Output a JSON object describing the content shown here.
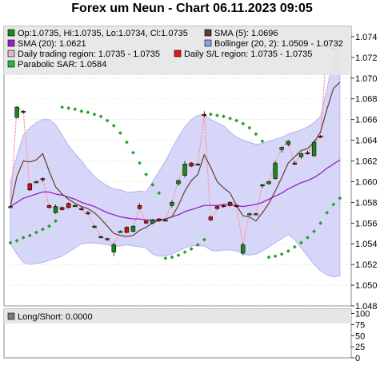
{
  "title": "Forex um Neun - Chart 06.11.2023 09:05",
  "colors": {
    "band_fill": "#d6d6f8",
    "band_edge": "#a8a8ee",
    "sma5": "#6b3a2a",
    "sma20": "#9a1fc8",
    "sar": "#22a02a",
    "daily_range": "#ff9aa6",
    "candle_up": "#1a8a1a",
    "candle_down": "#d01010",
    "legend_bg": "#e4e4e4",
    "grid": "#d0d0d0"
  },
  "legend": [
    {
      "id": "ohlc",
      "text": "Op:1.0735, Hi:1.0735, Lo:1.0734, Cl:1.0735",
      "color": "#1a8a1a"
    },
    {
      "id": "sma5",
      "text": "SMA (5): 1.0696",
      "color": "#6b3a2a"
    },
    {
      "id": "sma20",
      "text": "SMA (20): 1.0621",
      "color": "#9a1fc8"
    },
    {
      "id": "bollinger",
      "text": "Bollinger (20, 2): 1.0509 - 1.0732",
      "color": "#9a9af0"
    },
    {
      "id": "daily-range",
      "text": "Daily trading region: 1.0735 - 1.0735",
      "color": "#d9c0c0"
    },
    {
      "id": "daily-sl",
      "text": "Daily S/L region: 1.0735 - 1.0735",
      "color": "#e01818"
    },
    {
      "id": "sar",
      "text": "Parabolic SAR: 1.0584",
      "color": "#22c030"
    }
  ],
  "sub_legend": {
    "text": "Long/Short: 0.0000",
    "color": "#7a7a7a"
  },
  "chart_data": [
    {
      "type": "candlestick",
      "title": "Forex um Neun - Chart 06.11.2023 09:05",
      "ylim": [
        1.048,
        1.075
      ],
      "yticks": [
        1.048,
        1.05,
        1.052,
        1.054,
        1.056,
        1.058,
        1.06,
        1.062,
        1.064,
        1.066,
        1.068,
        1.07,
        1.072,
        1.074
      ],
      "ytick_labels": [
        "1.048",
        "1.050",
        "1.052",
        "1.054",
        "1.056",
        "1.058",
        "1.060",
        "1.062",
        "1.064",
        "1.066",
        "1.068",
        "1.070",
        "1.072",
        "1.074"
      ],
      "x": [
        0,
        1,
        2,
        3,
        4,
        5,
        6,
        7,
        8,
        9,
        10,
        11,
        12,
        13,
        14,
        15,
        16,
        17,
        18,
        19,
        20,
        21,
        22,
        23,
        24,
        25,
        26,
        27,
        28,
        29,
        30,
        31,
        32,
        33,
        34,
        35,
        36,
        37,
        38,
        39,
        40,
        41,
        42,
        43,
        44,
        45,
        46,
        47,
        48
      ],
      "candles": [
        {
          "o": 1.0576,
          "h": 1.0577,
          "l": 1.0575,
          "c": 1.0576
        },
        {
          "o": 1.0662,
          "h": 1.0673,
          "l": 1.0661,
          "c": 1.0672
        },
        {
          "o": 1.0668,
          "h": 1.0669,
          "l": 1.0666,
          "c": 1.0668
        },
        {
          "o": 1.0598,
          "h": 1.0599,
          "l": 1.0591,
          "c": 1.0592
        },
        {
          "o": 1.06,
          "h": 1.0601,
          "l": 1.0599,
          "c": 1.06
        },
        {
          "o": 1.0603,
          "h": 1.0604,
          "l": 1.06,
          "c": 1.0602
        },
        {
          "o": 1.0577,
          "h": 1.0578,
          "l": 1.0574,
          "c": 1.0575
        },
        {
          "o": 1.057,
          "h": 1.0578,
          "l": 1.0569,
          "c": 1.0576
        },
        {
          "o": 1.0575,
          "h": 1.0576,
          "l": 1.0572,
          "c": 1.0573
        },
        {
          "o": 1.0579,
          "h": 1.058,
          "l": 1.0574,
          "c": 1.0575
        },
        {
          "o": 1.0577,
          "h": 1.0578,
          "l": 1.0576,
          "c": 1.0577
        },
        {
          "o": 1.0574,
          "h": 1.0576,
          "l": 1.0572,
          "c": 1.0573
        },
        {
          "o": 1.057,
          "h": 1.0572,
          "l": 1.0568,
          "c": 1.0569
        },
        {
          "o": 1.0556,
          "h": 1.0558,
          "l": 1.0555,
          "c": 1.0557
        },
        {
          "o": 1.0546,
          "h": 1.0548,
          "l": 1.0545,
          "c": 1.0547
        },
        {
          "o": 1.0545,
          "h": 1.0546,
          "l": 1.0543,
          "c": 1.0544
        },
        {
          "o": 1.0532,
          "h": 1.0541,
          "l": 1.0528,
          "c": 1.0539
        },
        {
          "o": 1.0552,
          "h": 1.0553,
          "l": 1.0551,
          "c": 1.0552
        },
        {
          "o": 1.0556,
          "h": 1.0557,
          "l": 1.055,
          "c": 1.0551
        },
        {
          "o": 1.0552,
          "h": 1.0558,
          "l": 1.0551,
          "c": 1.0557
        },
        {
          "o": 1.0577,
          "h": 1.0579,
          "l": 1.0573,
          "c": 1.0574
        },
        {
          "o": 1.0562,
          "h": 1.0563,
          "l": 1.0559,
          "c": 1.056
        },
        {
          "o": 1.056,
          "h": 1.0564,
          "l": 1.0559,
          "c": 1.0563
        },
        {
          "o": 1.0564,
          "h": 1.0565,
          "l": 1.0561,
          "c": 1.0562
        },
        {
          "o": 1.0563,
          "h": 1.0564,
          "l": 1.0562,
          "c": 1.0563
        },
        {
          "o": 1.0577,
          "h": 1.0582,
          "l": 1.0575,
          "c": 1.058
        },
        {
          "o": 1.0598,
          "h": 1.0602,
          "l": 1.0596,
          "c": 1.0601
        },
        {
          "o": 1.0606,
          "h": 1.062,
          "l": 1.0604,
          "c": 1.0617
        },
        {
          "o": 1.0618,
          "h": 1.0619,
          "l": 1.0614,
          "c": 1.0615
        },
        {
          "o": 1.0617,
          "h": 1.0618,
          "l": 1.0616,
          "c": 1.0617
        },
        {
          "o": 1.0665,
          "h": 1.0668,
          "l": 1.0662,
          "c": 1.0664
        },
        {
          "o": 1.0566,
          "h": 1.0567,
          "l": 1.0562,
          "c": 1.0563
        },
        {
          "o": 1.0576,
          "h": 1.0577,
          "l": 1.0573,
          "c": 1.0574
        },
        {
          "o": 1.0577,
          "h": 1.0578,
          "l": 1.0575,
          "c": 1.0576
        },
        {
          "o": 1.058,
          "h": 1.0581,
          "l": 1.0576,
          "c": 1.0577
        },
        {
          "o": 1.0577,
          "h": 1.0578,
          "l": 1.0575,
          "c": 1.0576
        },
        {
          "o": 1.0531,
          "h": 1.0541,
          "l": 1.0529,
          "c": 1.0539
        },
        {
          "o": 1.0569,
          "h": 1.057,
          "l": 1.0568,
          "c": 1.0569
        },
        {
          "o": 1.0569,
          "h": 1.057,
          "l": 1.0568,
          "c": 1.0569
        },
        {
          "o": 1.0596,
          "h": 1.0598,
          "l": 1.0594,
          "c": 1.0597
        },
        {
          "o": 1.0598,
          "h": 1.0601,
          "l": 1.0597,
          "c": 1.06
        },
        {
          "o": 1.0603,
          "h": 1.062,
          "l": 1.0602,
          "c": 1.0618
        },
        {
          "o": 1.0631,
          "h": 1.0634,
          "l": 1.0628,
          "c": 1.0633
        },
        {
          "o": 1.0636,
          "h": 1.064,
          "l": 1.0634,
          "c": 1.0639
        },
        {
          "o": 1.0618,
          "h": 1.062,
          "l": 1.0616,
          "c": 1.0617
        },
        {
          "o": 1.0624,
          "h": 1.0628,
          "l": 1.0622,
          "c": 1.0627
        },
        {
          "o": 1.0628,
          "h": 1.063,
          "l": 1.0626,
          "c": 1.0627
        },
        {
          "o": 1.0625,
          "h": 1.064,
          "l": 1.0624,
          "c": 1.0638
        },
        {
          "o": 1.0644,
          "h": 1.0645,
          "l": 1.0642,
          "c": 1.0643
        }
      ],
      "extra_candles": [
        {
          "x": 49,
          "o": 1.0734,
          "h": 1.0737,
          "l": 1.0733,
          "c": 1.0735
        },
        {
          "x": 50,
          "o": 1.0728,
          "h": 1.0729,
          "l": 1.0727,
          "c": 1.0728
        },
        {
          "x": 51,
          "o": 1.0735,
          "h": 1.0735,
          "l": 1.0734,
          "c": 1.0735
        }
      ],
      "daily_range_line": [
        1.0576,
        1.0672,
        1.0668,
        1.0592,
        1.06,
        1.0602,
        1.0575,
        1.0576,
        1.0573,
        1.0575,
        1.0577,
        1.0573,
        1.0569,
        1.0557,
        1.0547,
        1.0544,
        1.0539,
        1.0552,
        1.0551,
        1.0557,
        1.0574,
        1.056,
        1.0563,
        1.0562,
        1.0563,
        1.058,
        1.0601,
        1.0617,
        1.0615,
        1.0617,
        1.0664,
        1.0563,
        1.0574,
        1.0576,
        1.0577,
        1.0576,
        1.0539,
        1.0569,
        1.0569,
        1.0597,
        1.06,
        1.0618,
        1.0633,
        1.0639,
        1.0617,
        1.0627,
        1.0627,
        1.0638,
        1.0643,
        1.0735,
        1.0728,
        1.0735
      ],
      "sma5": [
        1.0576,
        1.0605,
        1.062,
        1.0619,
        1.0621,
        1.0627,
        1.061,
        1.0595,
        1.0588,
        1.0583,
        1.0579,
        1.0576,
        1.0574,
        1.057,
        1.0564,
        1.0557,
        1.055,
        1.0548,
        1.0547,
        1.0548,
        1.0553,
        1.0556,
        1.056,
        1.0563,
        1.0564,
        1.0566,
        1.0577,
        1.0591,
        1.0601,
        1.0607,
        1.0626,
        1.0614,
        1.06,
        1.0594,
        1.0589,
        1.0577,
        1.0567,
        1.0566,
        1.0562,
        1.057,
        1.0579,
        1.0591,
        1.0604,
        1.0618,
        1.0624,
        1.063,
        1.0632,
        1.0638,
        1.0648,
        1.067,
        1.069,
        1.0696
      ],
      "sma20": [
        1.0576,
        1.058,
        1.0584,
        1.0586,
        1.0588,
        1.059,
        1.059,
        1.0588,
        1.0587,
        1.0585,
        1.0583,
        1.058,
        1.0578,
        1.0576,
        1.0573,
        1.057,
        1.0568,
        1.0566,
        1.0565,
        1.0564,
        1.0564,
        1.0563,
        1.0563,
        1.0563,
        1.0564,
        1.0566,
        1.0568,
        1.0571,
        1.0573,
        1.0575,
        1.0577,
        1.0577,
        1.0577,
        1.0578,
        1.0578,
        1.0577,
        1.0576,
        1.0577,
        1.0578,
        1.058,
        1.0583,
        1.0586,
        1.0589,
        1.0593,
        1.0596,
        1.0599,
        1.0601,
        1.0604,
        1.0608,
        1.0613,
        1.0617,
        1.0621
      ],
      "boll_upper": [
        1.06,
        1.0625,
        1.0645,
        1.0652,
        1.0657,
        1.066,
        1.066,
        1.0655,
        1.0645,
        1.0635,
        1.0627,
        1.062,
        1.0612,
        1.0605,
        1.06,
        1.0596,
        1.0593,
        1.0592,
        1.059,
        1.059,
        1.0591,
        1.059,
        1.06,
        1.061,
        1.062,
        1.0632,
        1.0643,
        1.0653,
        1.066,
        1.0664,
        1.0665,
        1.066,
        1.0657,
        1.0654,
        1.0648,
        1.0643,
        1.064,
        1.0638,
        1.0636,
        1.0637,
        1.0639,
        1.0641,
        1.0643,
        1.0646,
        1.0648,
        1.065,
        1.0653,
        1.0657,
        1.0663,
        1.069,
        1.0718,
        1.0732
      ],
      "boll_lower": [
        1.054,
        1.053,
        1.0522,
        1.052,
        1.0521,
        1.0522,
        1.0524,
        1.0526,
        1.0528,
        1.0532,
        1.0536,
        1.054,
        1.0541,
        1.0541,
        1.054,
        1.0539,
        1.0537,
        1.0538,
        1.0539,
        1.0538,
        1.0537,
        1.0536,
        1.053,
        1.0528,
        1.0528,
        1.053,
        1.0533,
        1.0536,
        1.0538,
        1.0538,
        1.0538,
        1.0534,
        1.0533,
        1.0534,
        1.0534,
        1.0533,
        1.053,
        1.0529,
        1.053,
        1.0533,
        1.0537,
        1.0541,
        1.0545,
        1.0549,
        1.0544,
        1.0536,
        1.0528,
        1.052,
        1.0514,
        1.051,
        1.0508,
        1.0509
      ],
      "sar": [
        {
          "x": 0,
          "y": 1.0541
        },
        {
          "x": 1,
          "y": 1.0543
        },
        {
          "x": 2,
          "y": 1.0546
        },
        {
          "x": 3,
          "y": 1.0548
        },
        {
          "x": 4,
          "y": 1.0551
        },
        {
          "x": 5,
          "y": 1.0554
        },
        {
          "x": 6,
          "y": 1.0557
        },
        {
          "x": 7,
          "y": 1.0562
        },
        {
          "x": 8,
          "y": 1.0672
        },
        {
          "x": 9,
          "y": 1.0671
        },
        {
          "x": 10,
          "y": 1.067
        },
        {
          "x": 11,
          "y": 1.0668
        },
        {
          "x": 12,
          "y": 1.0667
        },
        {
          "x": 13,
          "y": 1.0665
        },
        {
          "x": 14,
          "y": 1.0663
        },
        {
          "x": 15,
          "y": 1.0659
        },
        {
          "x": 16,
          "y": 1.0654
        },
        {
          "x": 17,
          "y": 1.0647
        },
        {
          "x": 18,
          "y": 1.0638
        },
        {
          "x": 19,
          "y": 1.0628
        },
        {
          "x": 20,
          "y": 1.0618
        },
        {
          "x": 21,
          "y": 1.0607
        },
        {
          "x": 22,
          "y": 1.0597
        },
        {
          "x": 23,
          "y": 1.0589
        },
        {
          "x": 24,
          "y": 1.0526
        },
        {
          "x": 25,
          "y": 1.0527
        },
        {
          "x": 26,
          "y": 1.0529
        },
        {
          "x": 27,
          "y": 1.0532
        },
        {
          "x": 28,
          "y": 1.0535
        },
        {
          "x": 29,
          "y": 1.0539
        },
        {
          "x": 30,
          "y": 1.0544
        },
        {
          "x": 31,
          "y": 1.0665
        },
        {
          "x": 32,
          "y": 1.0664
        },
        {
          "x": 33,
          "y": 1.0663
        },
        {
          "x": 34,
          "y": 1.0661
        },
        {
          "x": 35,
          "y": 1.0659
        },
        {
          "x": 36,
          "y": 1.0656
        },
        {
          "x": 37,
          "y": 1.0652
        },
        {
          "x": 38,
          "y": 1.0646
        },
        {
          "x": 39,
          "y": 1.0639
        },
        {
          "x": 40,
          "y": 1.0527
        },
        {
          "x": 41,
          "y": 1.0528
        },
        {
          "x": 42,
          "y": 1.053
        },
        {
          "x": 43,
          "y": 1.0533
        },
        {
          "x": 44,
          "y": 1.0537
        },
        {
          "x": 45,
          "y": 1.0541
        },
        {
          "x": 46,
          "y": 1.0546
        },
        {
          "x": 47,
          "y": 1.0552
        },
        {
          "x": 48,
          "y": 1.056
        },
        {
          "x": 49,
          "y": 1.057
        },
        {
          "x": 50,
          "y": 1.0578
        },
        {
          "x": 51,
          "y": 1.0584
        }
      ]
    },
    {
      "type": "line",
      "ylim": [
        0,
        110
      ],
      "yticks": [
        0,
        25,
        50,
        75,
        100
      ],
      "ytick_labels": [
        "0",
        "25",
        "50",
        "75",
        "100"
      ],
      "series": []
    }
  ]
}
